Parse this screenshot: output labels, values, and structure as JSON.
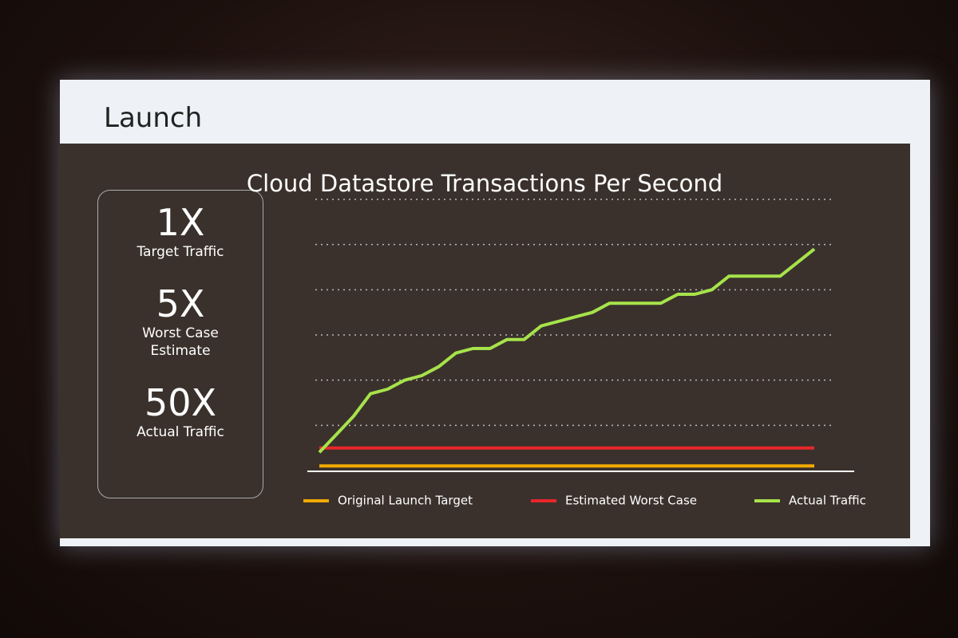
{
  "slide": {
    "title": "Launch",
    "callouts": [
      {
        "value": "1X",
        "label": "Target Traffic"
      },
      {
        "value": "5X",
        "label": "Worst Case Estimate"
      },
      {
        "value": "50X",
        "label": "Actual Traffic"
      }
    ]
  },
  "chart_data": {
    "type": "line",
    "title": "Cloud Datastore Transactions Per Second",
    "categories": [
      null,
      null,
      null,
      null,
      null,
      null,
      null,
      null,
      null,
      null,
      null,
      null,
      null,
      null,
      null,
      null,
      null,
      null,
      null,
      null,
      null,
      null,
      null,
      null,
      null,
      null,
      null,
      null,
      null,
      null
    ],
    "series": [
      {
        "name": "Original Launch Target",
        "color": "#f2a900",
        "values": [
          1,
          1,
          1,
          1,
          1,
          1,
          1,
          1,
          1,
          1,
          1,
          1,
          1,
          1,
          1,
          1,
          1,
          1,
          1,
          1,
          1,
          1,
          1,
          1,
          1,
          1,
          1,
          1,
          1,
          1
        ]
      },
      {
        "name": "Estimated Worst Case",
        "color": "#e8262b",
        "values": [
          5,
          5,
          5,
          5,
          5,
          5,
          5,
          5,
          5,
          5,
          5,
          5,
          5,
          5,
          5,
          5,
          5,
          5,
          5,
          5,
          5,
          5,
          5,
          5,
          5,
          5,
          5,
          5,
          5,
          5
        ]
      },
      {
        "name": "Actual Traffic",
        "color": "#a6e34a",
        "values": [
          4,
          8,
          12,
          17,
          18,
          20,
          21,
          23,
          26,
          27,
          27,
          29,
          29,
          32,
          33,
          34,
          35,
          37,
          37,
          37,
          37,
          39,
          39,
          40,
          43,
          43,
          43,
          43,
          46,
          49
        ]
      }
    ],
    "ylim": [
      0,
      60
    ],
    "yticks": [
      10,
      20,
      30,
      40,
      50,
      60
    ],
    "grid": true
  }
}
